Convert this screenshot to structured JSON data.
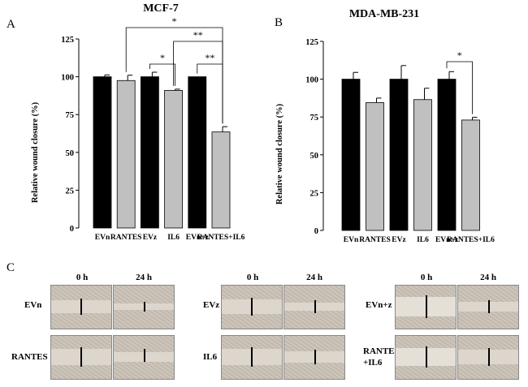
{
  "chart_data": [
    {
      "type": "bar",
      "panel": "A",
      "title": "MCF-7",
      "ylabel": "Relative wound closure (%)",
      "ylim": [
        0,
        125
      ],
      "yticks": [
        0,
        25,
        50,
        75,
        100,
        125
      ],
      "categories": [
        "EVn",
        "RANTES",
        "EVz",
        "IL6",
        "EVn+z",
        "RANTES+IL6"
      ],
      "values": [
        100,
        97.5,
        100,
        91,
        100,
        63.5
      ],
      "errors": [
        1.2,
        3.5,
        3,
        0.8,
        0,
        3.5
      ],
      "colors": [
        "#000000",
        "#c0c0c0",
        "#000000",
        "#c0c0c0",
        "#000000",
        "#c0c0c0"
      ],
      "significance": [
        {
          "from": 1,
          "to": 5,
          "label": "*"
        },
        {
          "from": 3,
          "to": 5,
          "label": "**"
        },
        {
          "from": 2,
          "to": 3,
          "label": "*"
        },
        {
          "from": 4,
          "to": 5,
          "label": "**"
        }
      ]
    },
    {
      "type": "bar",
      "panel": "B",
      "title": "MDA-MB-231",
      "ylabel": "Relative wound closure (%)",
      "ylim": [
        0,
        125
      ],
      "yticks": [
        0,
        25,
        50,
        75,
        100,
        125
      ],
      "categories": [
        "EVn",
        "RANTES",
        "EVz",
        "IL6",
        "EVn+z",
        "RANTES+IL6"
      ],
      "values": [
        100,
        84.5,
        100,
        86.5,
        100,
        73
      ],
      "errors": [
        4.5,
        3,
        9,
        7.5,
        5,
        1.8
      ],
      "colors": [
        "#000000",
        "#c0c0c0",
        "#000000",
        "#c0c0c0",
        "#000000",
        "#c0c0c0"
      ],
      "significance": [
        {
          "from": 4,
          "to": 5,
          "label": "*"
        }
      ]
    }
  ],
  "panels": {
    "a": "A",
    "b": "B",
    "c": "C"
  },
  "panel_c": {
    "times": [
      "0 h",
      "24 h"
    ],
    "groups": [
      {
        "rows": [
          {
            "label": "EVn"
          },
          {
            "label": "RANTES"
          }
        ]
      },
      {
        "rows": [
          {
            "label": "EVz"
          },
          {
            "label": "IL6"
          }
        ]
      },
      {
        "rows": [
          {
            "label": "EVn+z"
          },
          {
            "label": "RANTES\n+IL6"
          }
        ]
      }
    ]
  }
}
